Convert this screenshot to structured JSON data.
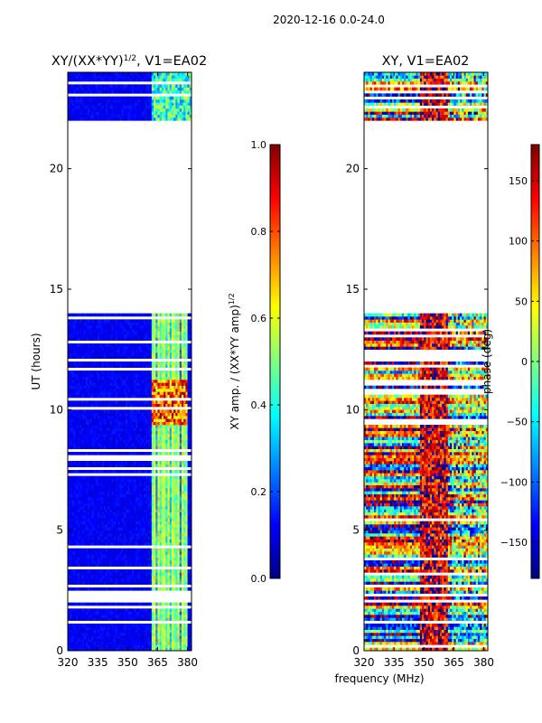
{
  "figure_title": "2020-12-16 0.0-24.0",
  "shared_xlabel": "frequency (MHz)",
  "colors": {
    "jet_stops": [
      "#000080",
      "#0000ff",
      "#0080ff",
      "#00ffff",
      "#80ff80",
      "#ffff00",
      "#ff8000",
      "#ff0000",
      "#800000"
    ],
    "frame": "#000000",
    "background": "#ffffff"
  },
  "chart_data": [
    {
      "type": "heatmap",
      "title": "XY/(XX*YY)",
      "title_superscript": "1/2",
      "title_suffix": ", V1=EA02",
      "xlabel": "",
      "ylabel": "UT (hours)",
      "xlim": [
        320,
        382
      ],
      "ylim": [
        0,
        24
      ],
      "xticks": [
        320,
        335,
        350,
        365,
        380
      ],
      "yticks": [
        0,
        5,
        10,
        15,
        20
      ],
      "data_gaps_hours": [
        [
          14.0,
          22.0
        ]
      ],
      "colorbar": {
        "label": "XY amp. / (XX*YY amp)",
        "label_superscript": "1/2",
        "range": [
          0.0,
          1.0
        ],
        "ticks": [
          "0.0",
          "0.2",
          "0.4",
          "0.6",
          "0.8",
          "1.0"
        ]
      }
    },
    {
      "type": "heatmap",
      "title": "XY, V1=EA02",
      "xlabel": "frequency (MHz)",
      "ylabel": "",
      "xlim": [
        320,
        382
      ],
      "ylim": [
        0,
        24
      ],
      "xticks": [
        320,
        335,
        350,
        365,
        380
      ],
      "yticks": [
        0,
        5,
        10,
        15,
        20
      ],
      "data_gaps_hours": [
        [
          14.0,
          22.0
        ]
      ],
      "colorbar": {
        "label": "phase (deg)",
        "range": [
          -180,
          180
        ],
        "ticks": [
          "−150",
          "−100",
          "−50",
          "0",
          "50",
          "100",
          "150"
        ]
      }
    }
  ]
}
